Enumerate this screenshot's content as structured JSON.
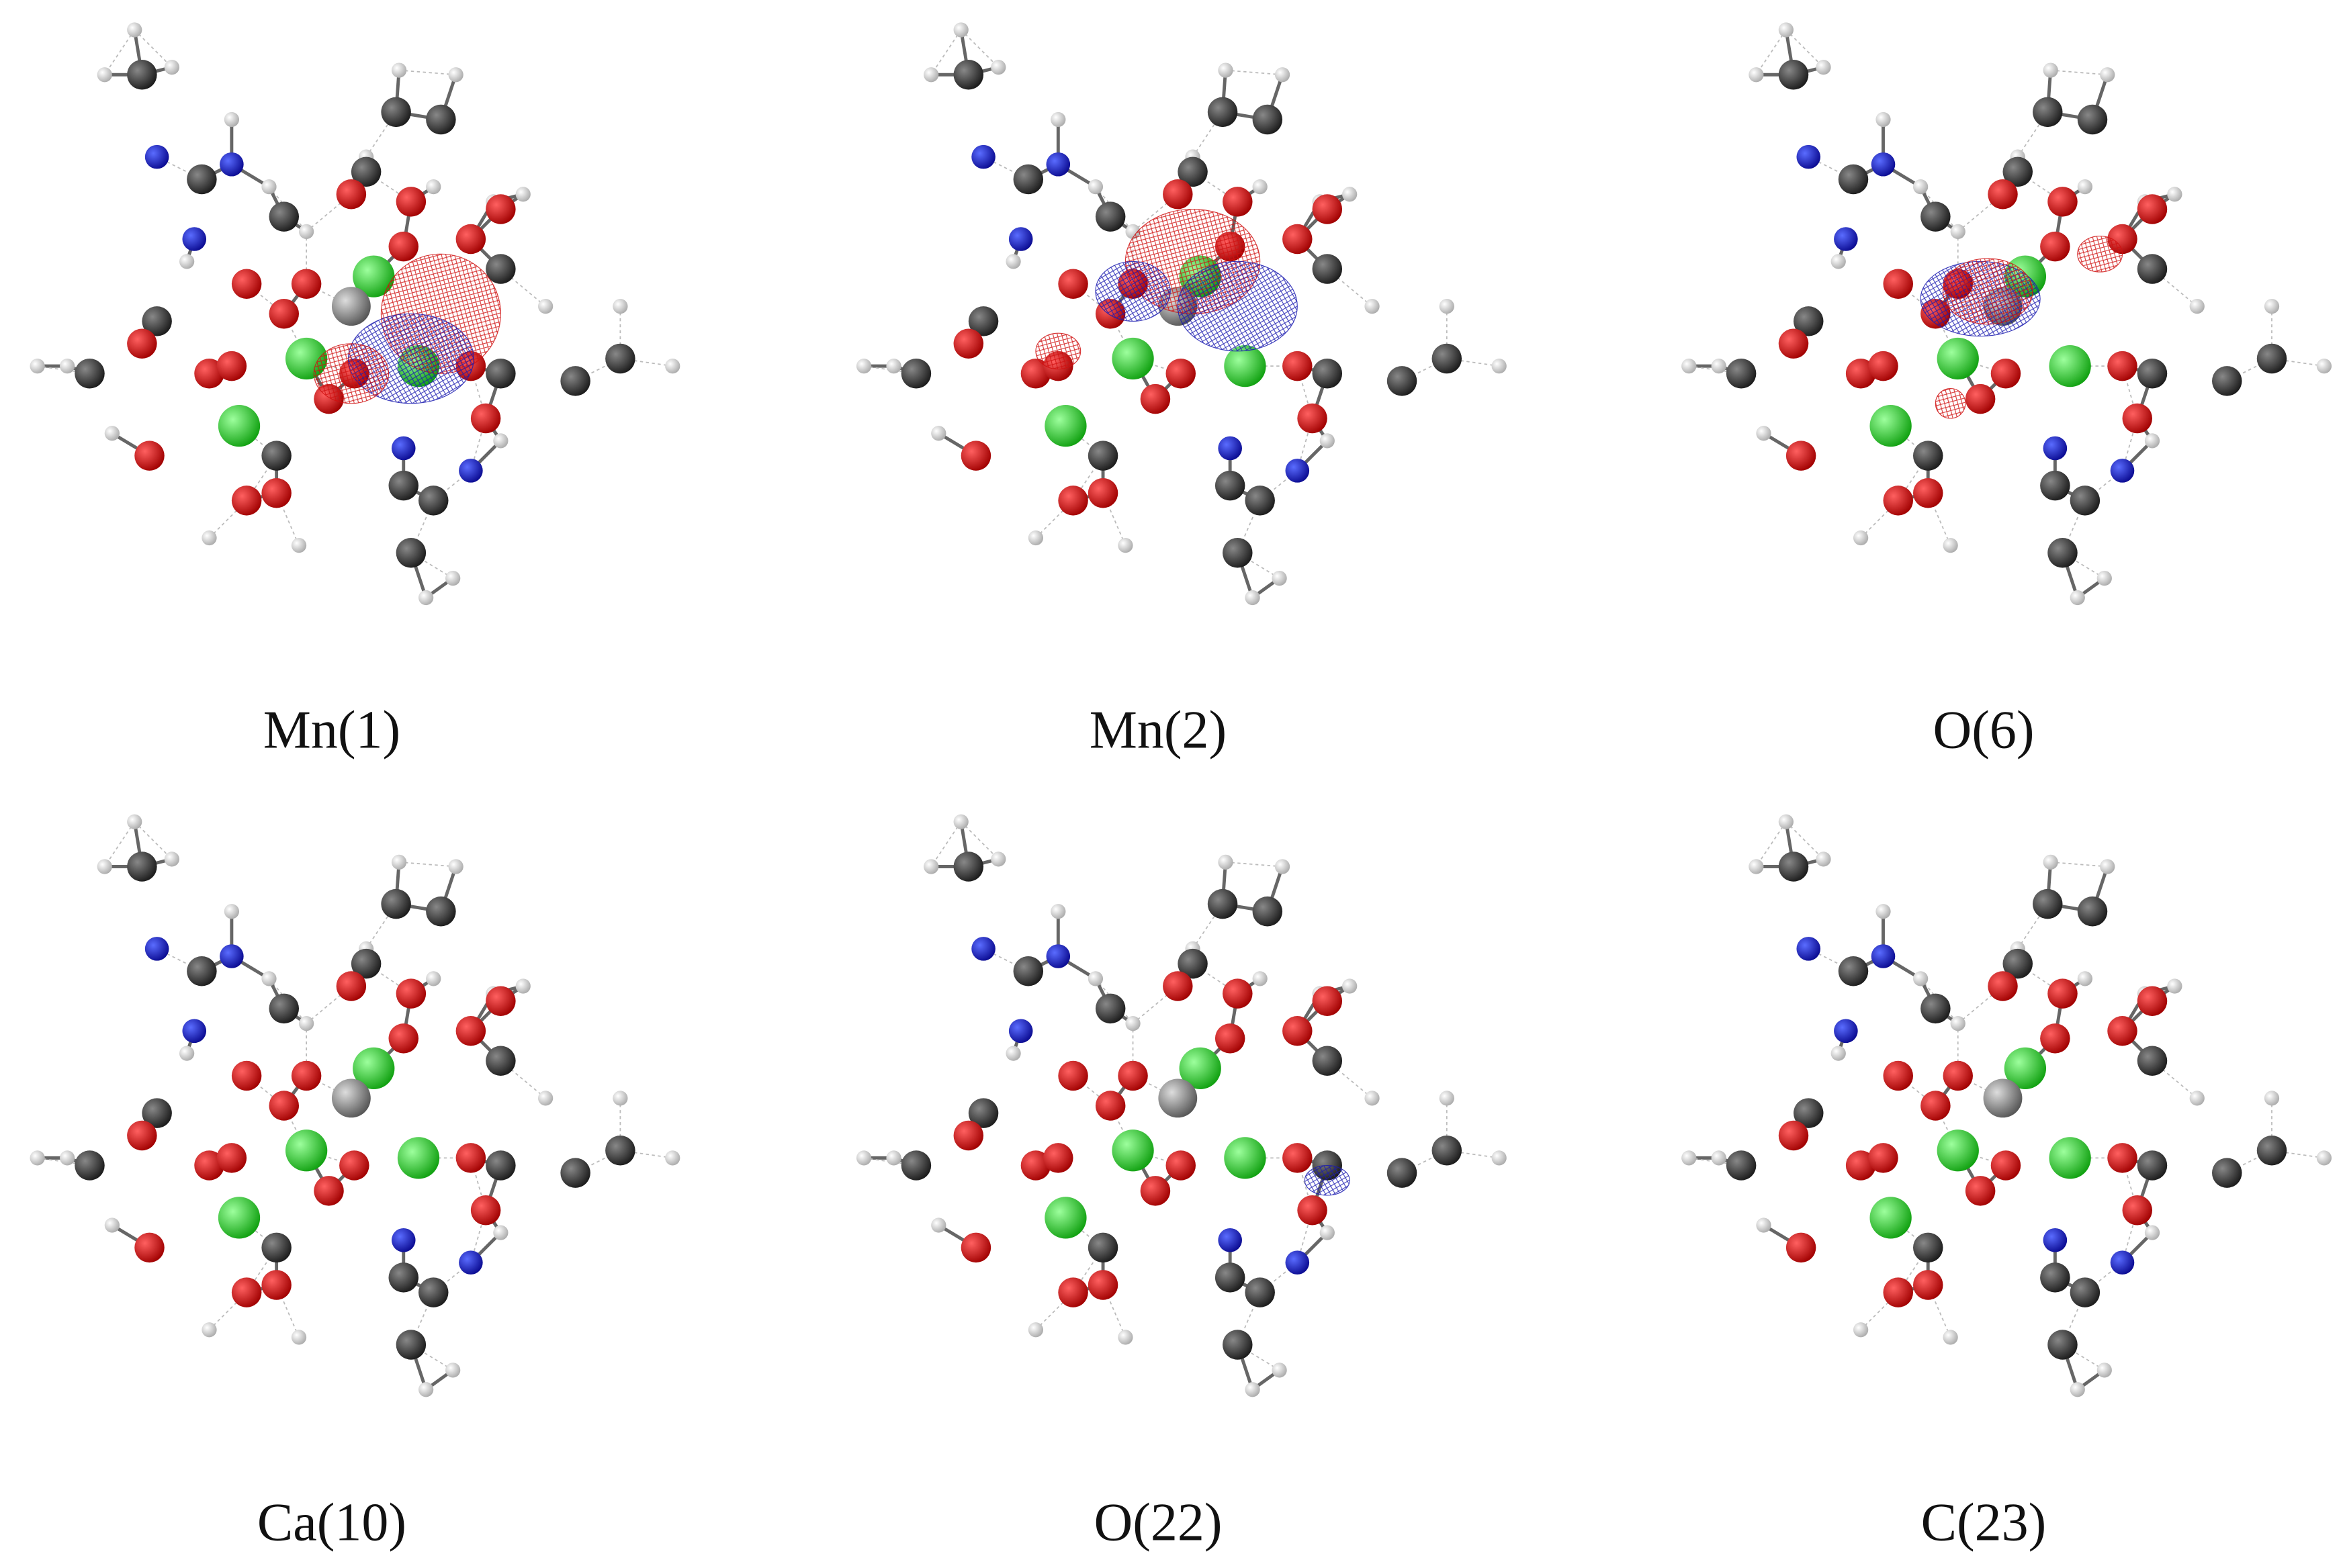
{
  "panels": [
    {
      "label": "Mn(1)"
    },
    {
      "label": "Mn(2)"
    },
    {
      "label": "O(6)"
    },
    {
      "label": "Ca(10)"
    },
    {
      "label": "O(22)"
    },
    {
      "label": "C(23)"
    }
  ]
}
